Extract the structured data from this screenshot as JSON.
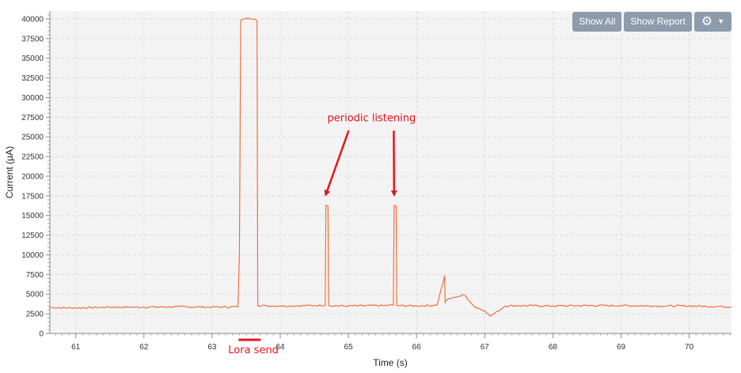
{
  "toolbar": {
    "show_all_label": "Show All",
    "show_report_label": "Show Report",
    "settings_icon": "gear-icon",
    "menu_icon": "caret-down-icon",
    "button_color": "#8c9cad"
  },
  "chart_data": {
    "type": "line",
    "title": "",
    "xlabel": "Time (s)",
    "ylabel": "Current (µA)",
    "xlim": [
      60.62,
      70.62
    ],
    "ylim": [
      0,
      41000
    ],
    "x_ticks": [
      61,
      62,
      63,
      64,
      65,
      66,
      67,
      68,
      69,
      70
    ],
    "y_ticks": [
      0,
      2500,
      5000,
      7500,
      10000,
      12500,
      15000,
      17500,
      20000,
      22500,
      25000,
      27500,
      30000,
      32500,
      35000,
      37500,
      40000
    ],
    "grid": true,
    "line_color": "#f07040",
    "series": [
      {
        "name": "",
        "x": [
          60.62,
          61.0,
          61.5,
          62.0,
          62.5,
          63.0,
          63.38,
          63.4,
          63.42,
          63.45,
          63.55,
          63.63,
          63.66,
          63.67,
          63.68,
          64.0,
          64.5,
          64.66,
          64.67,
          64.7,
          64.71,
          65.0,
          65.5,
          65.66,
          65.67,
          65.7,
          65.71,
          66.0,
          66.3,
          66.41,
          66.42,
          66.43,
          66.45,
          66.6,
          66.7,
          66.78,
          66.85,
          67.0,
          67.08,
          67.15,
          67.3,
          67.5,
          68.0,
          68.5,
          69.0,
          69.5,
          70.0,
          70.62
        ],
        "values": [
          3300,
          3250,
          3350,
          3350,
          3400,
          3350,
          3400,
          10000,
          39800,
          40000,
          40100,
          40000,
          39700,
          3500,
          3550,
          3500,
          3550,
          3600,
          16300,
          16200,
          3550,
          3500,
          3550,
          3600,
          16300,
          16200,
          3550,
          3500,
          3600,
          7300,
          3900,
          4200,
          4300,
          4700,
          4900,
          4100,
          3400,
          2900,
          2200,
          2600,
          3500,
          3550,
          3500,
          3550,
          3550,
          3500,
          3500,
          3400
        ]
      }
    ],
    "annotations": [
      {
        "text": "periodic listening",
        "x": 65.34,
        "y": 27000,
        "arrows_to": [
          [
            64.67,
            17500
          ],
          [
            65.67,
            17500
          ]
        ]
      },
      {
        "text": "Lora send",
        "x": 63.55,
        "y": -800
      }
    ],
    "annotation_color": "#e8141e"
  }
}
